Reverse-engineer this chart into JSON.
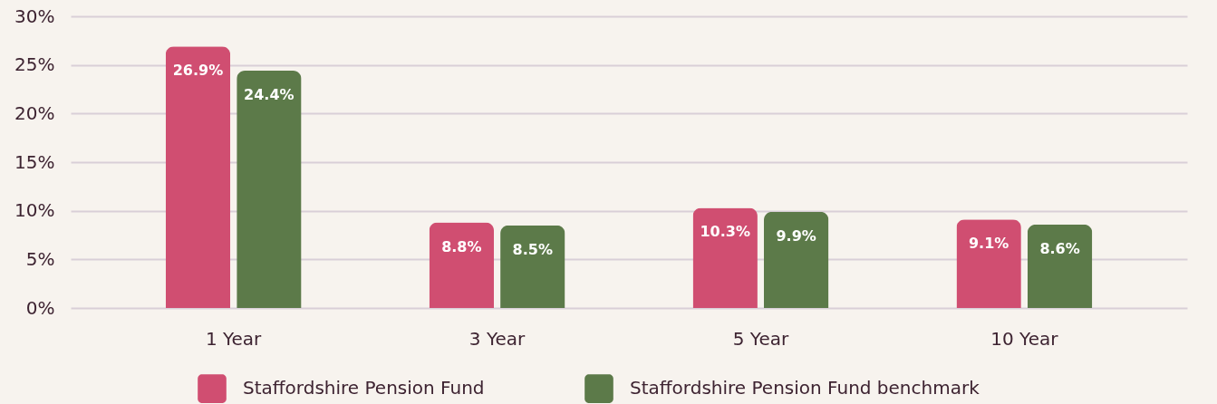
{
  "chart_data": {
    "type": "bar",
    "categories": [
      "1 Year",
      "3 Year",
      "5 Year",
      "10 Year"
    ],
    "series": [
      {
        "name": "Staffordshire Pension Fund",
        "color": "#d04e71",
        "values": [
          26.9,
          8.8,
          10.3,
          9.1
        ],
        "value_labels": [
          "26.9%",
          "8.8%",
          "10.3%",
          "9.1%"
        ]
      },
      {
        "name": "Staffordshire Pension Fund benchmark",
        "color": "#5c7a49",
        "values": [
          24.4,
          8.5,
          9.9,
          8.6
        ],
        "value_labels": [
          "24.4%",
          "8.5%",
          "9.9%",
          "8.6%"
        ]
      }
    ],
    "ylim": [
      0,
      30
    ],
    "yticks": [
      {
        "value": 0,
        "label": "0%"
      },
      {
        "value": 5,
        "label": "5%"
      },
      {
        "value": 10,
        "label": "10%"
      },
      {
        "value": 15,
        "label": "15%"
      },
      {
        "value": 20,
        "label": "20%"
      },
      {
        "value": 25,
        "label": "25%"
      },
      {
        "value": 30,
        "label": "30%"
      }
    ],
    "grid": "y",
    "legend": "bottom"
  }
}
